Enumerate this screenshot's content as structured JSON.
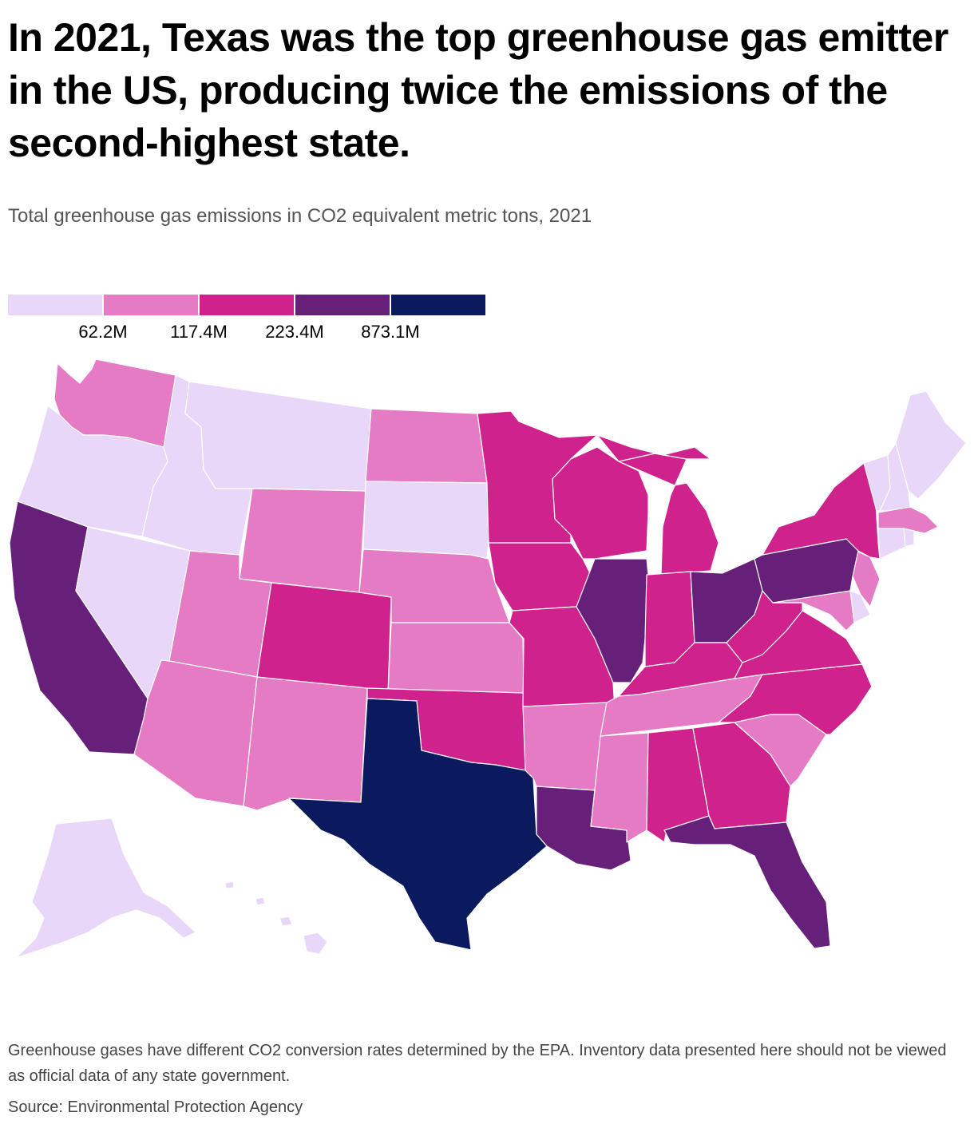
{
  "headline": "In 2021, Texas was the top greenhouse gas emitter in the US, producing twice the emissions of the second-highest state.",
  "subtitle": "Total greenhouse gas emissions in CO2 equivalent metric tons, 2021",
  "legend": {
    "bins": [
      {
        "color": "#e8d7f9"
      },
      {
        "color": "#e47bc4"
      },
      {
        "color": "#cf228c"
      },
      {
        "color": "#66207a"
      },
      {
        "color": "#0b1a5f"
      }
    ],
    "thresholds": [
      "62.2M",
      "117.4M",
      "223.4M",
      "873.1M"
    ]
  },
  "map_data": {
    "type": "choropleth",
    "region": "United States",
    "states": [
      {
        "name": "Washington",
        "bin": 1
      },
      {
        "name": "Oregon",
        "bin": 0
      },
      {
        "name": "California",
        "bin": 3
      },
      {
        "name": "Nevada",
        "bin": 0
      },
      {
        "name": "Idaho",
        "bin": 0
      },
      {
        "name": "Montana",
        "bin": 0
      },
      {
        "name": "Wyoming",
        "bin": 1
      },
      {
        "name": "Utah",
        "bin": 1
      },
      {
        "name": "Arizona",
        "bin": 1
      },
      {
        "name": "Colorado",
        "bin": 2
      },
      {
        "name": "New Mexico",
        "bin": 1
      },
      {
        "name": "North Dakota",
        "bin": 1
      },
      {
        "name": "South Dakota",
        "bin": 0
      },
      {
        "name": "Nebraska",
        "bin": 1
      },
      {
        "name": "Kansas",
        "bin": 1
      },
      {
        "name": "Oklahoma",
        "bin": 2
      },
      {
        "name": "Texas",
        "bin": 4
      },
      {
        "name": "Minnesota",
        "bin": 2
      },
      {
        "name": "Iowa",
        "bin": 2
      },
      {
        "name": "Missouri",
        "bin": 2
      },
      {
        "name": "Arkansas",
        "bin": 1
      },
      {
        "name": "Louisiana",
        "bin": 3
      },
      {
        "name": "Wisconsin",
        "bin": 2
      },
      {
        "name": "Illinois",
        "bin": 3
      },
      {
        "name": "Michigan",
        "bin": 2
      },
      {
        "name": "Indiana",
        "bin": 2
      },
      {
        "name": "Ohio",
        "bin": 3
      },
      {
        "name": "Kentucky",
        "bin": 2
      },
      {
        "name": "Tennessee",
        "bin": 1
      },
      {
        "name": "Mississippi",
        "bin": 1
      },
      {
        "name": "Alabama",
        "bin": 2
      },
      {
        "name": "Georgia",
        "bin": 2
      },
      {
        "name": "Florida",
        "bin": 3
      },
      {
        "name": "South Carolina",
        "bin": 1
      },
      {
        "name": "North Carolina",
        "bin": 2
      },
      {
        "name": "Virginia",
        "bin": 2
      },
      {
        "name": "West Virginia",
        "bin": 2
      },
      {
        "name": "Maryland",
        "bin": 1
      },
      {
        "name": "Delaware",
        "bin": 0
      },
      {
        "name": "New Jersey",
        "bin": 1
      },
      {
        "name": "Pennsylvania",
        "bin": 3
      },
      {
        "name": "New York",
        "bin": 2
      },
      {
        "name": "Connecticut",
        "bin": 0
      },
      {
        "name": "Rhode Island",
        "bin": 0
      },
      {
        "name": "Massachusetts",
        "bin": 1
      },
      {
        "name": "Vermont",
        "bin": 0
      },
      {
        "name": "New Hampshire",
        "bin": 0
      },
      {
        "name": "Maine",
        "bin": 0
      },
      {
        "name": "Alaska",
        "bin": 0
      },
      {
        "name": "Hawaii",
        "bin": 0
      }
    ]
  },
  "footnote": "Greenhouse gases have different CO2 conversion rates determined by the EPA. Inventory data presented here should not be viewed as official data of any state government.",
  "source": "Source: Environmental Protection Agency"
}
